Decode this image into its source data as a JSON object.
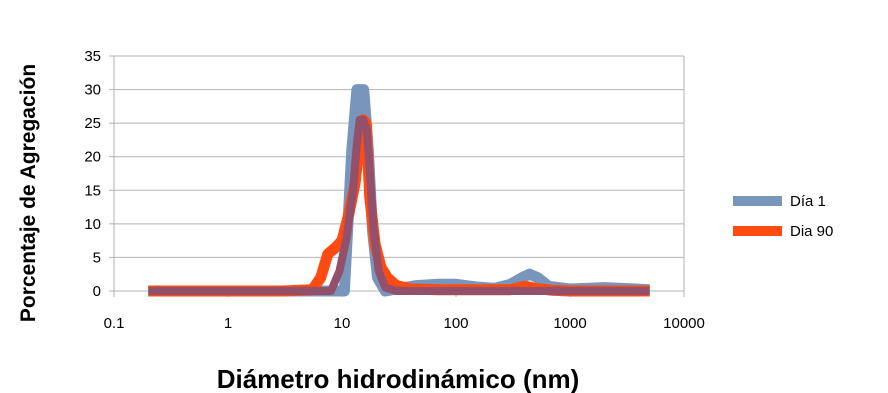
{
  "chart_data": {
    "type": "line",
    "title": "",
    "xlabel": "Diámetro hidrodinámico (nm)",
    "ylabel": "Porcentaje de Agregación",
    "xscale": "log",
    "xlim": [
      0.1,
      10000
    ],
    "ylim": [
      0,
      35
    ],
    "x_ticks": [
      0.1,
      1,
      10,
      100,
      1000,
      10000
    ],
    "x_tick_labels": [
      "0.1",
      "1",
      "10",
      "100",
      "1000",
      "10000"
    ],
    "y_ticks": [
      0,
      5,
      10,
      15,
      20,
      25,
      30,
      35
    ],
    "y_tick_labels": [
      "0",
      "5",
      "10",
      "15",
      "20",
      "25",
      "30",
      "35"
    ],
    "grid": "horizontal",
    "legend_position": "right",
    "series": [
      {
        "name": "Día 1",
        "color": "#7896bb",
        "x": [
          0.2,
          0.5,
          1,
          3,
          6.5,
          8.5,
          10.5,
          12.2,
          13.5,
          15.5,
          17,
          18.5,
          20.5,
          24,
          30,
          45,
          70,
          100,
          150,
          220,
          300,
          380,
          440,
          520,
          650,
          1000,
          2000,
          5000
        ],
        "y": [
          0,
          0,
          0,
          0,
          0,
          0,
          0,
          21,
          30,
          30,
          21,
          9,
          2,
          0,
          0.3,
          0.8,
          1,
          1,
          0.6,
          0.4,
          1,
          2,
          2.5,
          2,
          0.7,
          0.3,
          0.5,
          0.2
        ]
      },
      {
        "name": "Dia 90",
        "color": "#ff4a12",
        "x": [
          0.2,
          0.5,
          1,
          3,
          5.5,
          6.5,
          7.5,
          8.8,
          10,
          11.5,
          13,
          14.3,
          15.3,
          16.3,
          17.5,
          19.5,
          22,
          25,
          30,
          40,
          70,
          150,
          300,
          400,
          500,
          700,
          1000,
          2000,
          5000
        ],
        "y": [
          0,
          0,
          0,
          0,
          0.2,
          2,
          5.5,
          6.5,
          7.5,
          11.5,
          16,
          22.5,
          25.5,
          25,
          14,
          7,
          3.5,
          2,
          0.8,
          0.3,
          0.2,
          0.2,
          0.2,
          0.7,
          0.4,
          0.1,
          0,
          0,
          0
        ]
      },
      {
        "name": "",
        "color": "#93506a",
        "x": [
          0.2,
          0.5,
          1,
          3,
          6,
          8,
          9.5,
          11,
          12.5,
          13.5,
          14.3,
          15.3,
          16.5,
          17.5,
          19,
          21,
          24,
          30,
          45,
          100,
          300,
          1000,
          5000
        ],
        "y": [
          0,
          0,
          0,
          0,
          0,
          0,
          3,
          8,
          15,
          22,
          25.5,
          25.5,
          24,
          18,
          9,
          3,
          0.5,
          0,
          0,
          0,
          0,
          0,
          0
        ]
      }
    ]
  }
}
